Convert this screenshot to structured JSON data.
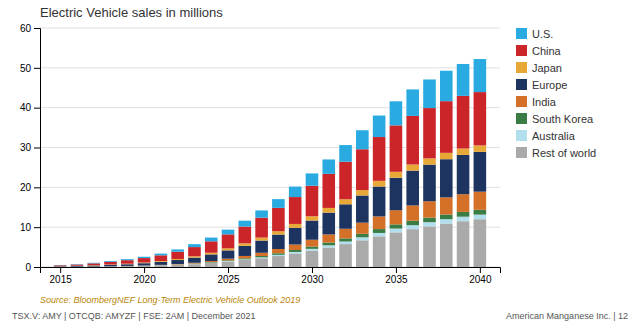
{
  "chart_data": {
    "type": "bar",
    "stacked": true,
    "title": "Electric Vehicle sales in millions",
    "annotations": [
      "Source: BloombergNEF Long-Term Electric Vehicle Outlook 2019",
      "TSX.V: AMY | OTCQB: AMYZF | FSE: 2AM | December 2021",
      "American Manganese Inc. | 12"
    ],
    "x": [
      2015,
      2016,
      2017,
      2018,
      2019,
      2020,
      2021,
      2022,
      2023,
      2024,
      2025,
      2026,
      2027,
      2028,
      2029,
      2030,
      2031,
      2032,
      2033,
      2034,
      2035,
      2036,
      2037,
      2038,
      2039,
      2040
    ],
    "series": [
      {
        "name": "Rest of world",
        "color": "#AAAAAA",
        "values": [
          0.04,
          0.07,
          0.1,
          0.15,
          0.2,
          0.28,
          0.38,
          0.52,
          0.72,
          1.0,
          1.35,
          1.75,
          2.2,
          2.75,
          3.4,
          4.1,
          4.9,
          5.75,
          6.7,
          7.7,
          8.7,
          9.5,
          10.2,
          10.9,
          11.5,
          12.0
        ]
      },
      {
        "name": "Australia",
        "color": "#B2DFEE",
        "values": [
          0.003,
          0.005,
          0.008,
          0.012,
          0.018,
          0.025,
          0.035,
          0.05,
          0.07,
          0.1,
          0.14,
          0.18,
          0.24,
          0.3,
          0.38,
          0.46,
          0.55,
          0.65,
          0.75,
          0.85,
          0.95,
          1.0,
          1.05,
          1.1,
          1.13,
          1.15
        ]
      },
      {
        "name": "South Korea",
        "color": "#3A7D44",
        "values": [
          0.005,
          0.008,
          0.012,
          0.018,
          0.025,
          0.035,
          0.05,
          0.07,
          0.1,
          0.14,
          0.19,
          0.25,
          0.32,
          0.4,
          0.49,
          0.58,
          0.68,
          0.78,
          0.88,
          0.97,
          1.05,
          1.11,
          1.15,
          1.18,
          1.2,
          1.21
        ]
      },
      {
        "name": "India",
        "color": "#D47027",
        "values": [
          0.003,
          0.005,
          0.01,
          0.018,
          0.028,
          0.045,
          0.07,
          0.11,
          0.17,
          0.27,
          0.41,
          0.59,
          0.81,
          1.07,
          1.37,
          1.7,
          2.05,
          2.42,
          2.8,
          3.18,
          3.55,
          3.85,
          4.1,
          4.3,
          4.45,
          4.55
        ]
      },
      {
        "name": "Europe",
        "color": "#1D3461",
        "values": [
          0.12,
          0.17,
          0.24,
          0.32,
          0.42,
          0.57,
          0.76,
          1.0,
          1.3,
          1.65,
          2.08,
          2.55,
          3.07,
          3.62,
          4.2,
          4.82,
          5.47,
          6.14,
          6.82,
          7.5,
          8.16,
          8.73,
          9.2,
          9.58,
          9.85,
          10.0
        ]
      },
      {
        "name": "Japan",
        "color": "#E8A838",
        "values": [
          0.05,
          0.065,
          0.085,
          0.11,
          0.14,
          0.17,
          0.21,
          0.27,
          0.34,
          0.42,
          0.52,
          0.63,
          0.74,
          0.85,
          0.97,
          1.08,
          1.18,
          1.27,
          1.36,
          1.43,
          1.49,
          1.54,
          1.57,
          1.6,
          1.61,
          1.62
        ]
      },
      {
        "name": "China",
        "color": "#CC2529",
        "values": [
          0.2,
          0.3,
          0.46,
          0.68,
          0.88,
          1.12,
          1.43,
          1.82,
          2.3,
          2.87,
          3.5,
          4.2,
          5.0,
          5.85,
          6.75,
          7.65,
          8.55,
          9.42,
          10.25,
          11.0,
          11.65,
          12.2,
          12.63,
          12.97,
          13.22,
          13.38
        ]
      },
      {
        "name": "U.S.",
        "color": "#29ABE2",
        "values": [
          0.07,
          0.1,
          0.14,
          0.2,
          0.26,
          0.33,
          0.43,
          0.57,
          0.73,
          0.94,
          1.19,
          1.48,
          1.82,
          2.2,
          2.63,
          3.1,
          3.62,
          4.18,
          4.77,
          5.4,
          6.05,
          6.65,
          7.18,
          7.64,
          8.01,
          8.3
        ]
      }
    ],
    "xlim": [
      2013.8,
      2041.2
    ],
    "xticks": [
      2015,
      2020,
      2025,
      2030,
      2035,
      2040
    ],
    "ylim": [
      0,
      60
    ],
    "yticks": [
      0,
      10,
      20,
      30,
      40,
      50,
      60
    ],
    "grid": true,
    "legend": "right"
  }
}
